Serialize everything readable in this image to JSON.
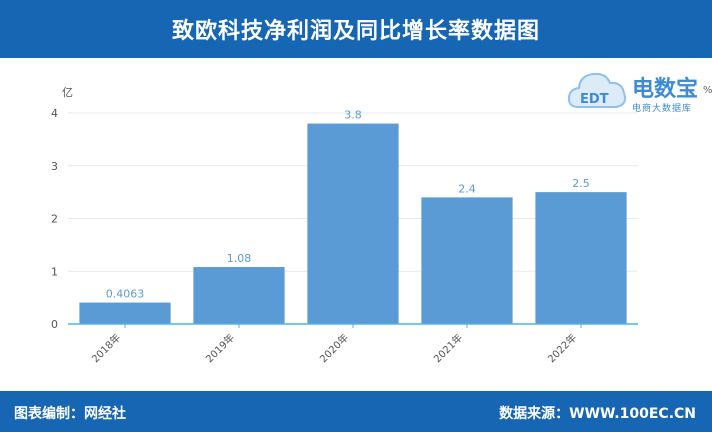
{
  "header": {
    "title": "致欧科技净利润及同比增长率数据图"
  },
  "footer": {
    "left": "图表编制：网经社",
    "right": "数据来源：WWW.100EC.CN"
  },
  "watermark": {
    "brand": "电数宝",
    "tagline": "电商大数据库",
    "logo_text": "EDT",
    "right_axis_hint": "%"
  },
  "chart_data": {
    "type": "bar",
    "title": "致欧科技净利润及同比增长率数据图",
    "ylabel": "亿",
    "categories": [
      "2018年",
      "2019年",
      "2020年",
      "2021年",
      "2022年"
    ],
    "series": [
      {
        "values": [
          0.4063,
          1.08,
          3.8,
          2.4,
          2.5
        ],
        "labels": [
          "0.4063",
          "1.08",
          "3.8",
          "2.4",
          "2.5"
        ]
      }
    ],
    "ylim": [
      0,
      4
    ],
    "yticks": [
      0,
      1,
      2,
      3,
      4
    ],
    "grid": true,
    "bar_color": "#5b9bd5",
    "label_color": "#5b9bd5",
    "axis_color": "#4fb3e8"
  }
}
